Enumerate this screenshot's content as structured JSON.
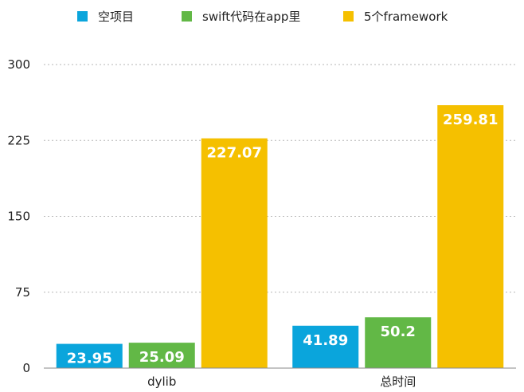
{
  "chart_data": {
    "type": "bar",
    "categories": [
      "dylib",
      "总时间"
    ],
    "series": [
      {
        "name": "空项目",
        "color": "#0aa5dc",
        "values": [
          23.95,
          41.89
        ]
      },
      {
        "name": "swift代码在app里",
        "color": "#62b846",
        "values": [
          25.09,
          50.2
        ]
      },
      {
        "name": "5个framework",
        "color": "#f5c000",
        "values": [
          227.07,
          259.81
        ]
      }
    ],
    "ylim": [
      0,
      300
    ],
    "yticks": [
      0,
      75,
      150,
      225,
      300
    ],
    "grid": true,
    "legend_position": "top",
    "data_labels": true
  }
}
